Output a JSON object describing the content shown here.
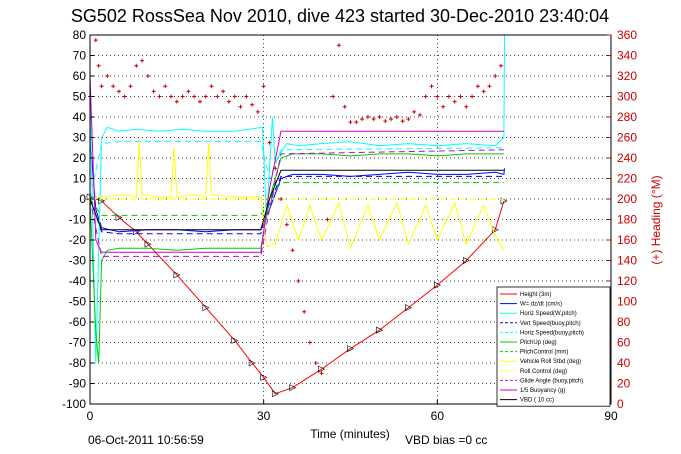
{
  "chart_data": {
    "type": "line",
    "title": "SG502 RossSea Nov 2010, dive 423 started 30-Dec-2010 23:40:04",
    "xlabel": "Time (minutes)",
    "ylabel": "",
    "ylabel_right": "(+) Heading (°M)",
    "xlim": [
      0,
      90
    ],
    "ylim": [
      -100,
      80
    ],
    "ylim_right": [
      0,
      360
    ],
    "xticks": [
      0,
      30,
      60,
      90
    ],
    "yticks": [
      -100,
      -90,
      -80,
      -70,
      -60,
      -50,
      -40,
      -30,
      -20,
      -10,
      0,
      10,
      20,
      30,
      40,
      50,
      60,
      70,
      80
    ],
    "yticks_right": [
      0,
      20,
      40,
      60,
      80,
      100,
      120,
      140,
      160,
      180,
      200,
      220,
      240,
      260,
      280,
      300,
      320,
      340,
      360
    ],
    "grid": true,
    "legend_position": "bottom-right",
    "footer_left": "06-Oct-2011 10:56:59",
    "footer_right": "VBD bias =0 cc",
    "colors": {
      "right_axis": "#cc0000",
      "height": "#ff0000",
      "w": "#0000ff",
      "horiz_speed": "#00ffff",
      "pitch": "#00cc00",
      "roll": "#ffff00",
      "buoyancy": "#cc00cc",
      "vbd": "#000000"
    },
    "series": [
      {
        "name": "Height (3m)",
        "color": "#ff0000",
        "dash": "solid",
        "markers": "triangle",
        "x": [
          0,
          2,
          5,
          8,
          10,
          15,
          20,
          25,
          28,
          30,
          32,
          35,
          40,
          45,
          50,
          55,
          60,
          65,
          70,
          71.5
        ],
        "y": [
          1,
          -1,
          -9,
          -16,
          -22,
          -37,
          -53,
          -69,
          -80,
          -87,
          -95,
          -92,
          -83,
          -73,
          -64,
          -53,
          -42,
          -30,
          -15,
          -1
        ]
      },
      {
        "name": "W= dz/dt (cm/s)",
        "color": "#0000ff",
        "dash": "solid",
        "x": [
          0,
          1,
          2,
          5,
          10,
          15,
          20,
          25,
          29.5,
          31,
          33,
          35,
          40,
          45,
          50,
          55,
          60,
          65,
          70,
          71.5,
          71.6
        ],
        "y": [
          30,
          -5,
          -14,
          -16,
          -15,
          -15,
          -16,
          -15,
          -15,
          -5,
          10,
          12,
          12,
          11,
          12,
          13,
          12,
          12,
          13,
          12,
          15
        ]
      },
      {
        "name": "Horiz Speed(W,pitch)",
        "color": "#00ffff",
        "dash": "solid",
        "x": [
          0,
          1,
          2,
          3,
          5,
          8,
          12,
          16,
          20,
          25,
          29.8,
          30.5,
          31.5,
          32,
          34,
          36,
          40,
          45,
          50,
          55,
          60,
          65,
          70,
          71.5,
          71.6
        ],
        "y": [
          50,
          -80,
          30,
          35,
          33,
          34,
          33,
          34,
          33,
          33,
          35,
          -10,
          40,
          18,
          27,
          26,
          27,
          28,
          26,
          27,
          26,
          27,
          26,
          30,
          80
        ]
      },
      {
        "name": "Vert Speed(buoy,pitch)",
        "color": "#0000ff",
        "dash": "dash",
        "x": [
          0,
          2,
          5,
          29.5,
          31,
          33,
          71.5
        ],
        "y": [
          0,
          -16,
          -17,
          -17,
          -2,
          11,
          11
        ]
      },
      {
        "name": "Horiz Speed(buoy,pitch)",
        "color": "#00ffff",
        "dash": "dash",
        "x": [
          0,
          2,
          5,
          29.5,
          31,
          33,
          71.5
        ],
        "y": [
          0,
          27,
          28,
          28,
          10,
          24,
          25
        ]
      },
      {
        "name": "PitchUp (deg)",
        "color": "#00cc00",
        "dash": "solid",
        "x": [
          0,
          1,
          1.5,
          2,
          3,
          5,
          10,
          15,
          20,
          25,
          29.5,
          31,
          33,
          35,
          40,
          45,
          50,
          55,
          60,
          65,
          70,
          71.5
        ],
        "y": [
          0,
          -65,
          -80,
          -30,
          -25,
          -24,
          -24,
          -25,
          -24,
          -24,
          -24,
          0,
          20,
          22,
          22,
          21,
          22,
          22,
          21,
          22,
          22,
          22
        ]
      },
      {
        "name": "PitchControl (mm)",
        "color": "#00cc00",
        "dash": "dash",
        "x": [
          0,
          2,
          5,
          29.5,
          31,
          33,
          71.5
        ],
        "y": [
          0,
          -8,
          -8,
          -8,
          0,
          8,
          8
        ]
      },
      {
        "name": "Vehicle Roll Stbd (deg)",
        "color": "#ffff00",
        "dash": "solid",
        "x": [
          0,
          2,
          6,
          8,
          8.5,
          9,
          12,
          14,
          14.5,
          15,
          18,
          20,
          20.5,
          21,
          25,
          29.5,
          30.5,
          32,
          34,
          36,
          38,
          40,
          43,
          45,
          48,
          50,
          53,
          55,
          58,
          60,
          63,
          65,
          68,
          70,
          71.5
        ],
        "y": [
          0,
          1,
          2,
          1,
          28,
          2,
          1,
          1,
          25,
          1,
          2,
          1,
          27,
          2,
          1,
          1,
          -23,
          -22,
          -3,
          -20,
          -3,
          -20,
          -2,
          -24,
          -3,
          -20,
          -2,
          -22,
          -3,
          -20,
          -2,
          -22,
          -3,
          -18,
          -25
        ]
      },
      {
        "name": "Roll Control (deg)",
        "color": "#ffff00",
        "dash": "dash",
        "x": [
          0,
          71.5
        ],
        "y": [
          0,
          0
        ]
      },
      {
        "name": "Glide Angle (buoy,pitch)",
        "color": "#cc00cc",
        "dash": "dash",
        "x": [
          0,
          2,
          5,
          29.5,
          31,
          33,
          71.5
        ],
        "y": [
          0,
          -28,
          -28,
          -28,
          -5,
          22,
          24
        ]
      },
      {
        "name": "1/5 Buoyancy (g)",
        "color": "#cc00cc",
        "dash": "solid",
        "x": [
          0,
          1,
          2,
          5,
          29.5,
          31,
          33,
          71.5
        ],
        "y": [
          60,
          -20,
          -26,
          -26,
          -26,
          5,
          33,
          33
        ]
      },
      {
        "name": "VBD ( 10 cc)",
        "color": "#000000",
        "dash": "solid",
        "x": [
          0,
          2,
          5,
          29.5,
          31,
          33,
          71.5
        ],
        "y": [
          0,
          -15,
          -15,
          -15,
          0,
          14,
          14
        ]
      }
    ],
    "heading_series": {
      "name": "Heading",
      "color": "#cc0000",
      "axis": "right",
      "marker": "+",
      "x": [
        0,
        1,
        1.5,
        2,
        3,
        4,
        5,
        6,
        7,
        8,
        9,
        10,
        11,
        12,
        13,
        14,
        15,
        16,
        17,
        18,
        19,
        20,
        21,
        22,
        23,
        24,
        25,
        26,
        27,
        28,
        29,
        30,
        31,
        32,
        33,
        34,
        35,
        36,
        37,
        38,
        39,
        40,
        41,
        42,
        43,
        44,
        45,
        46,
        47,
        48,
        49,
        50,
        51,
        52,
        53,
        54,
        55,
        56,
        57,
        58,
        59,
        60,
        61,
        62,
        63,
        64,
        65,
        66,
        67,
        68,
        69,
        70,
        71
      ],
      "y": [
        300,
        355,
        330,
        310,
        320,
        310,
        305,
        300,
        310,
        330,
        335,
        320,
        305,
        300,
        310,
        300,
        295,
        300,
        305,
        300,
        295,
        300,
        310,
        300,
        305,
        295,
        300,
        290,
        300,
        292,
        285,
        310,
        255,
        230,
        200,
        175,
        150,
        120,
        90,
        60,
        40,
        30,
        180,
        300,
        350,
        290,
        275,
        275,
        278,
        280,
        278,
        280,
        276,
        278,
        280,
        276,
        278,
        285,
        282,
        300,
        310,
        300,
        290,
        300,
        295,
        300,
        290,
        300,
        310,
        305,
        310,
        320,
        330
      ]
    }
  }
}
